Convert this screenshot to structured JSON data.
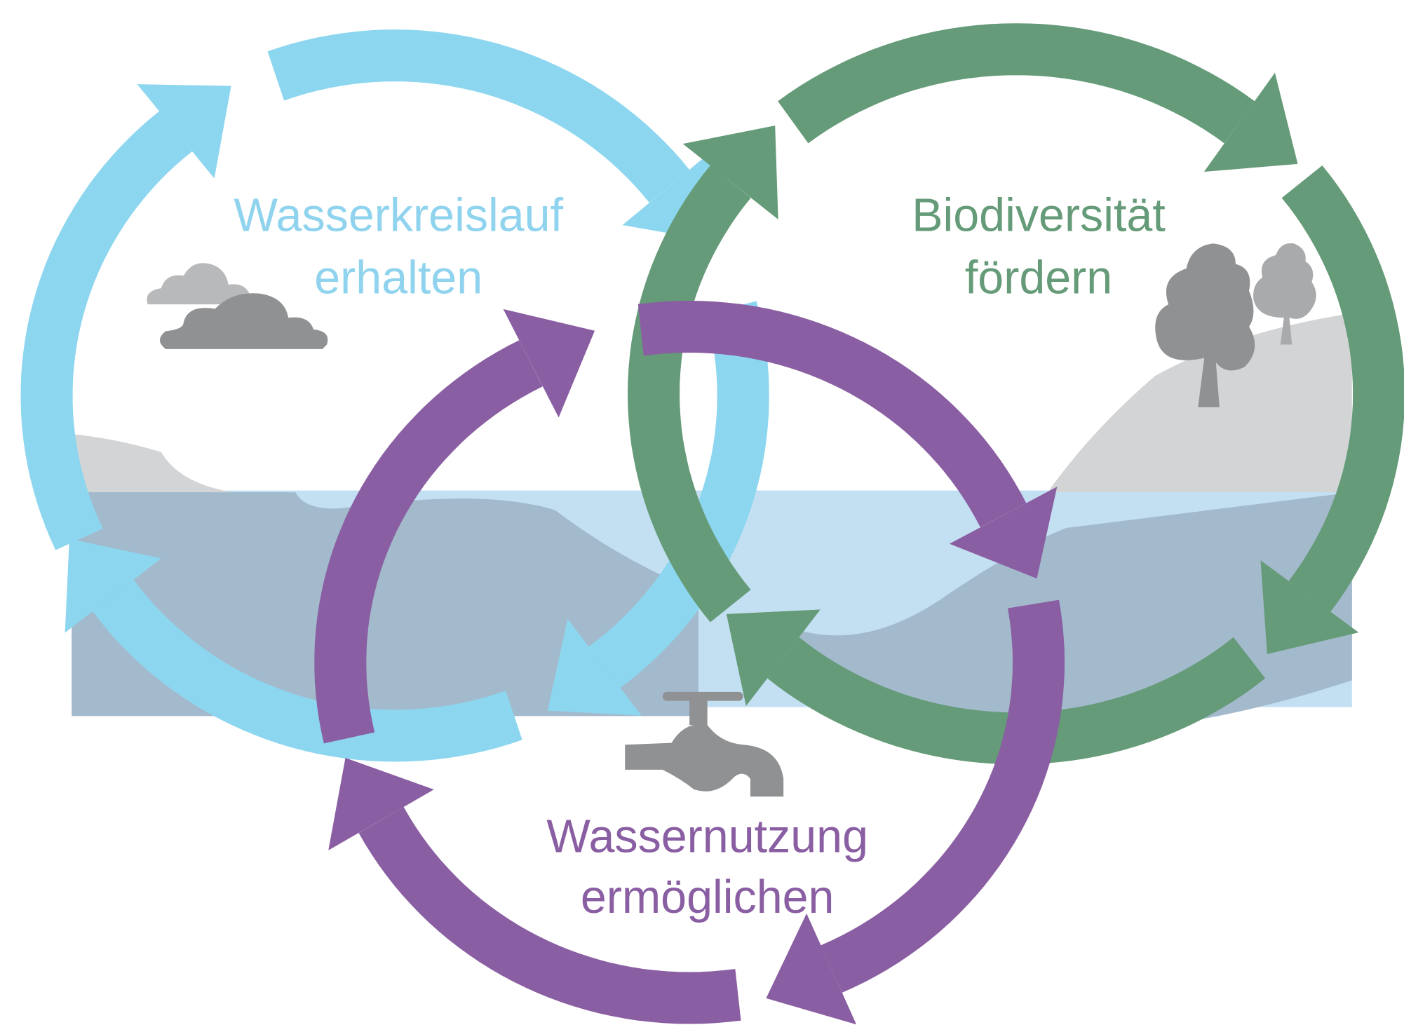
{
  "nodes": [
    {
      "lines": [
        "Wasserkreislauf",
        "erhalten"
      ]
    },
    {
      "lines": [
        "Biodiversität",
        "fördern"
      ]
    },
    {
      "lines": [
        "Wassernutzung",
        "ermöglichen"
      ]
    }
  ]
}
